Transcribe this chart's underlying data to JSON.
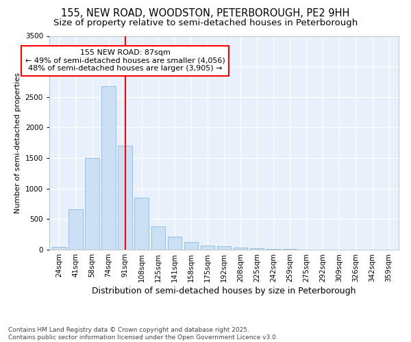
{
  "title1": "155, NEW ROAD, WOODSTON, PETERBOROUGH, PE2 9HH",
  "title2": "Size of property relative to semi-detached houses in Peterborough",
  "xlabel": "Distribution of semi-detached houses by size in Peterborough",
  "ylabel": "Number of semi-detached properties",
  "categories": [
    "24sqm",
    "41sqm",
    "58sqm",
    "74sqm",
    "91sqm",
    "108sqm",
    "125sqm",
    "141sqm",
    "158sqm",
    "175sqm",
    "192sqm",
    "208sqm",
    "225sqm",
    "242sqm",
    "259sqm",
    "275sqm",
    "292sqm",
    "309sqm",
    "326sqm",
    "342sqm",
    "359sqm"
  ],
  "values": [
    50,
    660,
    1500,
    2680,
    1700,
    850,
    380,
    210,
    125,
    70,
    55,
    35,
    22,
    12,
    8,
    5,
    3,
    2,
    1,
    1,
    0
  ],
  "bar_color": "#cce0f5",
  "bar_edge_color": "#88b8e0",
  "vline_x_index": 4,
  "vline_color": "red",
  "annotation_text": "155 NEW ROAD: 87sqm\n← 49% of semi-detached houses are smaller (4,056)\n48% of semi-detached houses are larger (3,905) →",
  "annotation_box_color": "white",
  "annotation_box_edge": "red",
  "ylim": [
    0,
    3500
  ],
  "yticks": [
    0,
    500,
    1000,
    1500,
    2000,
    2500,
    3000,
    3500
  ],
  "footnote": "Contains HM Land Registry data © Crown copyright and database right 2025.\nContains public sector information licensed under the Open Government Licence v3.0.",
  "bg_color": "#ffffff",
  "plot_bg_color": "#e8f0fc",
  "grid_color": "#ffffff",
  "title_fontsize": 10.5,
  "subtitle_fontsize": 9.5,
  "xlabel_fontsize": 9,
  "ylabel_fontsize": 8,
  "tick_fontsize": 7.5,
  "footnote_fontsize": 6.5
}
